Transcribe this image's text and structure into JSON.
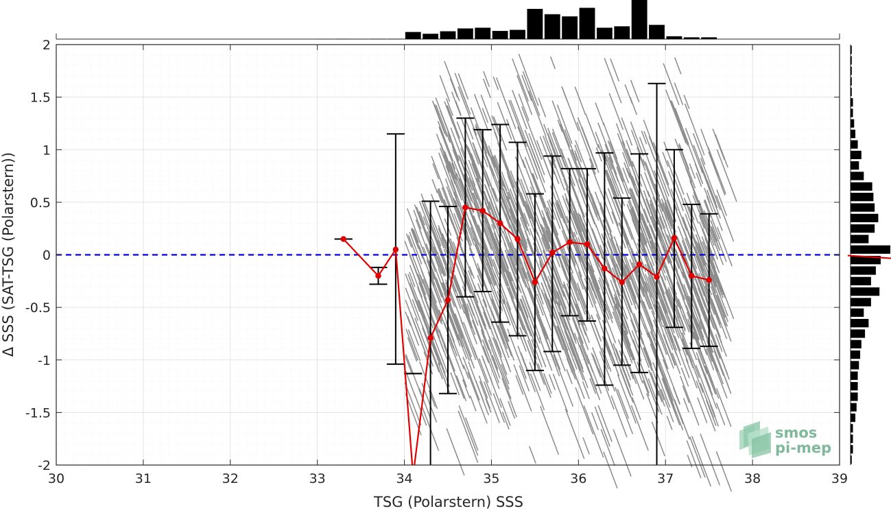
{
  "chart_data": {
    "type": "scatter",
    "title": "",
    "xlabel": "TSG (Polarstern) SSS",
    "ylabel": "Δ SSS (SAT-TSG (Polarstern))",
    "xlim": [
      30,
      39
    ],
    "ylim": [
      -2,
      2
    ],
    "xticks": [
      30,
      31,
      32,
      33,
      34,
      35,
      36,
      37,
      38,
      39
    ],
    "yticks": [
      -2,
      -1.5,
      -1,
      -0.5,
      0,
      0.5,
      1,
      1.5,
      2
    ],
    "grid": true,
    "minor_grid": true,
    "reference_line": {
      "y": 0,
      "style": "dashed",
      "color": "#0000dd"
    },
    "colors": {
      "scatter": "#8c8c8c",
      "mean": "#e00000",
      "errorbar": "#000000",
      "histogram": "#000000",
      "reference": "#0000dd"
    },
    "binned_stats": {
      "x": [
        33.3,
        33.7,
        33.9,
        34.1,
        34.3,
        34.5,
        34.7,
        34.9,
        35.1,
        35.3,
        35.5,
        35.7,
        35.9,
        36.1,
        36.3,
        36.5,
        36.7,
        36.9,
        37.1,
        37.3,
        37.5
      ],
      "mean": [
        0.15,
        -0.2,
        0.05,
        -2.1,
        -0.79,
        -0.43,
        0.45,
        0.42,
        0.3,
        0.15,
        -0.26,
        0.02,
        0.12,
        0.1,
        -0.13,
        -0.26,
        -0.09,
        -0.21,
        0.16,
        -0.2,
        -0.24
      ],
      "low": [
        0.15,
        -0.28,
        -1.04,
        -1.13,
        -2.1,
        -1.32,
        -0.4,
        -0.35,
        -0.64,
        -0.77,
        -1.1,
        -0.92,
        -0.58,
        -0.63,
        -1.24,
        -1.05,
        -1.12,
        -2.1,
        -0.69,
        -0.89,
        -0.87
      ],
      "high": [
        0.15,
        -0.12,
        1.15,
        -1.13,
        0.51,
        0.46,
        1.3,
        1.19,
        1.24,
        1.07,
        0.58,
        0.94,
        0.82,
        0.82,
        0.97,
        0.54,
        0.96,
        1.63,
        1.0,
        0.48,
        0.39
      ]
    },
    "x_histogram": {
      "bin_centers": [
        33.1,
        33.3,
        33.5,
        33.7,
        33.9,
        34.1,
        34.3,
        34.5,
        34.7,
        34.9,
        35.1,
        35.3,
        35.5,
        35.7,
        35.9,
        36.1,
        36.3,
        36.5,
        36.7,
        36.9,
        37.1,
        37.3,
        37.5
      ],
      "counts": [
        0.5,
        1,
        0.5,
        1,
        1,
        20,
        15,
        22,
        30,
        32,
        23,
        26,
        85,
        70,
        64,
        88,
        32,
        36,
        110,
        40,
        8,
        5,
        5
      ]
    },
    "y_histogram": {
      "bin_centers": [
        1.95,
        1.85,
        1.75,
        1.65,
        1.55,
        1.45,
        1.35,
        1.25,
        1.15,
        1.05,
        0.95,
        0.85,
        0.75,
        0.65,
        0.55,
        0.45,
        0.35,
        0.25,
        0.15,
        0.05,
        -0.05,
        -0.15,
        -0.25,
        -0.35,
        -0.45,
        -0.55,
        -0.65,
        -0.75,
        -0.85,
        -0.95,
        -1.05,
        -1.15,
        -1.25,
        -1.35,
        -1.45,
        -1.55,
        -1.65,
        -1.75,
        -1.85,
        -1.95
      ],
      "counts": [
        1,
        1,
        1,
        1,
        1,
        2,
        2,
        3,
        4,
        6,
        9,
        7,
        11,
        18,
        19,
        20,
        23,
        20,
        15,
        33,
        25,
        21,
        17,
        24,
        17,
        11,
        15,
        12,
        9,
        8,
        7,
        6,
        6,
        6,
        5,
        4,
        2,
        2,
        2,
        1
      ]
    },
    "y_mean_marker": -0.02
  },
  "logo": {
    "line1": "smos",
    "line2": "pi-mep",
    "color": "#7fb89b"
  }
}
